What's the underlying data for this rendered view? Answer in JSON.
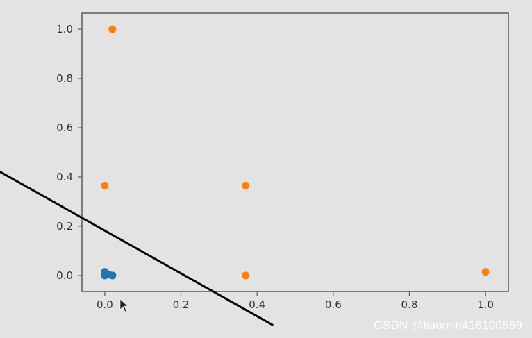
{
  "chart_data": {
    "type": "scatter",
    "xlim": [
      -0.06,
      1.06
    ],
    "ylim": [
      -0.065,
      1.065
    ],
    "x_ticks": [
      0.0,
      0.2,
      0.4,
      0.6,
      0.8,
      1.0
    ],
    "x_tick_labels": [
      "0.0",
      "0.2",
      "0.4",
      "0.6",
      "0.8",
      "1.0"
    ],
    "y_ticks": [
      0.0,
      0.2,
      0.4,
      0.6,
      0.8,
      1.0
    ],
    "y_tick_labels": [
      "0.0",
      "0.2",
      "0.4",
      "0.6",
      "0.8",
      "1.0"
    ],
    "grid": false,
    "series": [
      {
        "color": "#1f77b4",
        "points": [
          {
            "x": 0.0,
            "y": 0.015
          },
          {
            "x": 0.0,
            "y": 0.0
          },
          {
            "x": 0.01,
            "y": 0.005
          },
          {
            "x": 0.02,
            "y": 0.0
          }
        ]
      },
      {
        "color": "#ff7f0e",
        "points": [
          {
            "x": 0.02,
            "y": 1.0
          },
          {
            "x": 0.0,
            "y": 0.365
          },
          {
            "x": 0.37,
            "y": 0.365
          },
          {
            "x": 0.37,
            "y": 0.0
          },
          {
            "x": 1.0,
            "y": 0.015
          }
        ]
      }
    ],
    "annotation_line": {
      "color": "#000000",
      "from": {
        "x": -0.32,
        "y": 0.46
      },
      "to": {
        "x": 0.44,
        "y": -0.2
      }
    }
  },
  "watermark": "CSDN @liaomin416100569"
}
